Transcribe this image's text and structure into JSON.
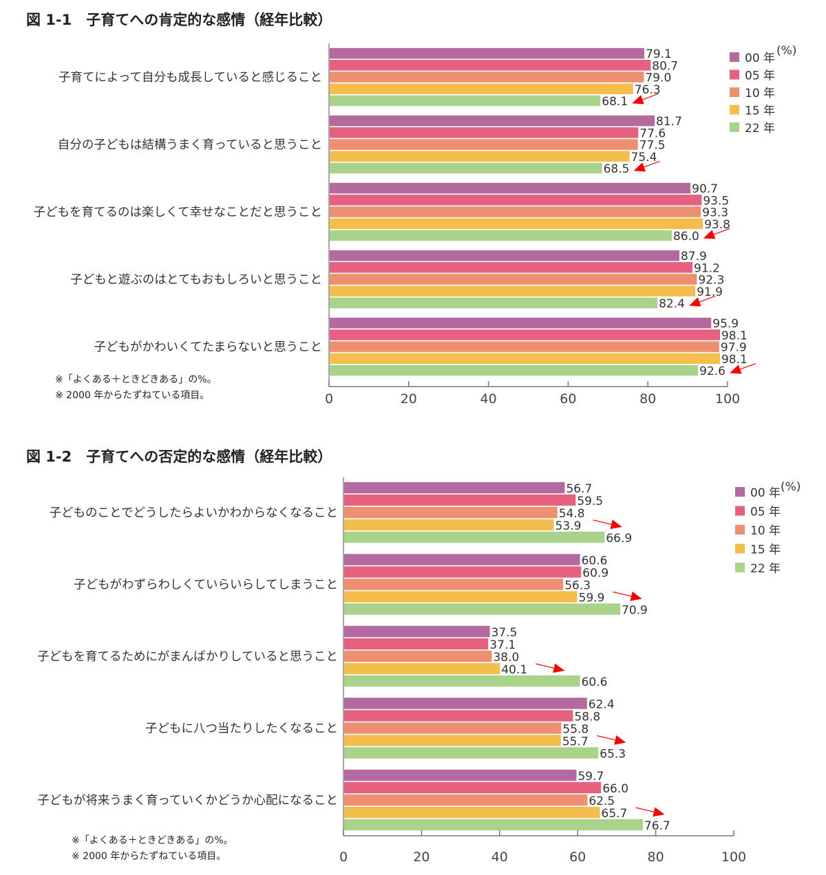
{
  "chart_data": [
    {
      "type": "bar",
      "orientation": "horizontal",
      "title": "図 1-1　子育てへの肯定的な感情（経年比較）",
      "unit_label": "(%)",
      "xlim": [
        0,
        100
      ],
      "xticks": [
        0,
        20,
        40,
        60,
        80,
        100
      ],
      "legend_position": "top-right",
      "categories": [
        "子育てによって自分も成長していると感じること",
        "自分の子どもは結構うまく育っていると思うこと",
        "子どもを育てるのは楽しくて幸せなことだと思うこと",
        "子どもと遊ぶのはとてもおもしろいと思うこと",
        "子どもがかわいくてたまらないと思うこと"
      ],
      "series": [
        {
          "name": "00 年",
          "color": "#b56a9f",
          "values": [
            79.1,
            81.7,
            90.7,
            87.9,
            95.9
          ]
        },
        {
          "name": "05 年",
          "color": "#e6617f",
          "values": [
            80.7,
            77.6,
            93.5,
            91.2,
            98.1
          ]
        },
        {
          "name": "10 年",
          "color": "#ec9070",
          "values": [
            79.0,
            77.5,
            93.3,
            92.3,
            97.9
          ]
        },
        {
          "name": "15 年",
          "color": "#f5be4c",
          "values": [
            76.3,
            75.4,
            93.8,
            91.9,
            98.1
          ]
        },
        {
          "name": "22 年",
          "color": "#a9d38b",
          "values": [
            68.1,
            68.5,
            86.0,
            82.4,
            92.6
          ]
        }
      ],
      "annotations": {
        "arrow_direction": "down",
        "arrow_color": "#ff0000"
      },
      "notes": [
        "※「よくある＋ときどきある」の%。",
        "※ 2000 年からたずねている項目。"
      ]
    },
    {
      "type": "bar",
      "orientation": "horizontal",
      "title": "図 1-2　子育てへの否定的な感情（経年比較）",
      "unit_label": "(%)",
      "xlim": [
        0,
        100
      ],
      "xticks": [
        0,
        20,
        40,
        60,
        80,
        100
      ],
      "legend_position": "top-right",
      "categories": [
        "子どものことでどうしたらよいかわからなくなること",
        "子どもがわずらわしくていらいらしてしまうこと",
        "子どもを育てるためにがまんばかりしていると思うこと",
        "子どもに八つ当たりしたくなること",
        "子どもが将来うまく育っていくかどうか心配になること"
      ],
      "series": [
        {
          "name": "00 年",
          "color": "#b56a9f",
          "values": [
            56.7,
            60.6,
            37.5,
            62.4,
            59.7
          ]
        },
        {
          "name": "05 年",
          "color": "#e6617f",
          "values": [
            59.5,
            60.9,
            37.1,
            58.8,
            66.0
          ]
        },
        {
          "name": "10 年",
          "color": "#ec9070",
          "values": [
            54.8,
            56.3,
            38.0,
            55.8,
            62.5
          ]
        },
        {
          "name": "15 年",
          "color": "#f5be4c",
          "values": [
            53.9,
            59.9,
            40.1,
            55.7,
            65.7
          ]
        },
        {
          "name": "22 年",
          "color": "#a9d38b",
          "values": [
            66.9,
            70.9,
            60.6,
            65.3,
            76.7
          ]
        }
      ],
      "annotations": {
        "arrow_direction": "up",
        "arrow_color": "#ff0000"
      },
      "notes": [
        "※「よくある＋ときどきある」の%。",
        "※ 2000 年からたずねている項目。"
      ]
    }
  ]
}
